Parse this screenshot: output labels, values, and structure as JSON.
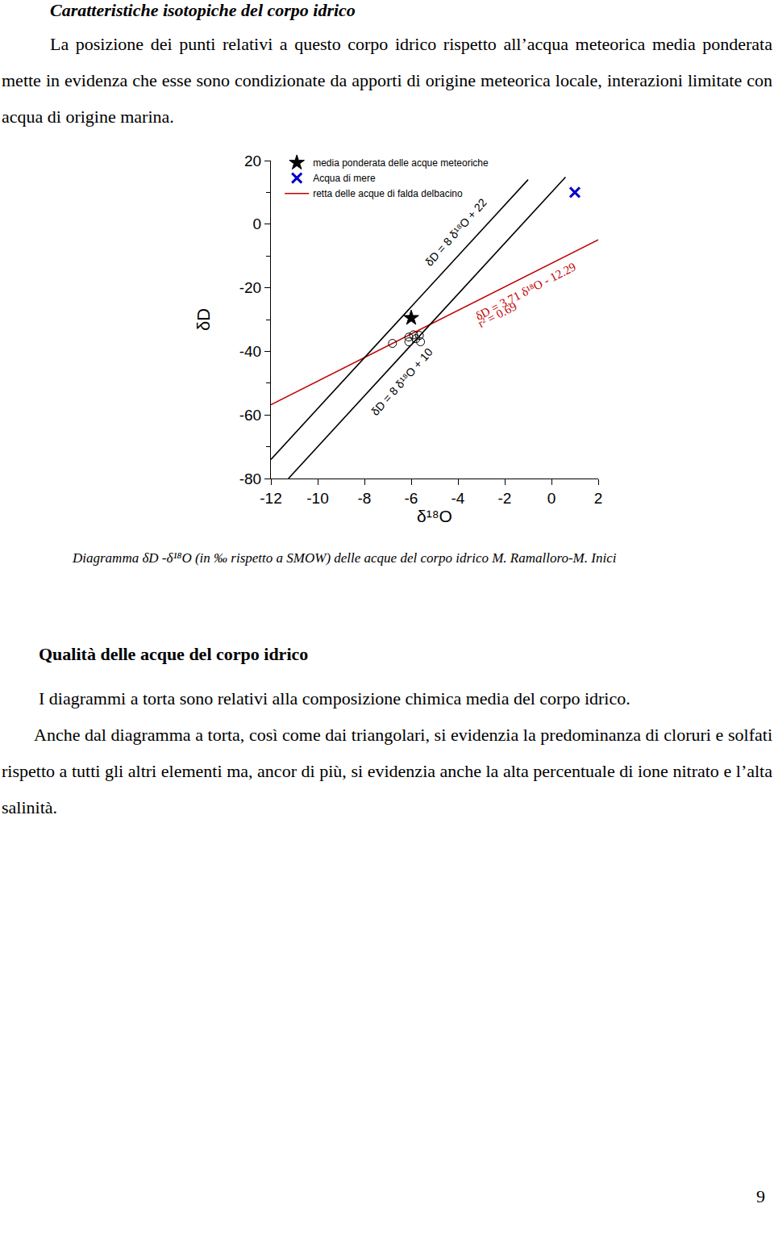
{
  "document": {
    "heading": "Caratteristiche isotopiche del corpo idrico",
    "paragraph": "La posizione dei punti relativi a questo corpo idrico rispetto all’acqua meteorica media ponderata mette in evidenza che esse sono condizionate da apporti di origine meteorica locale, interazioni limitate con acqua di origine marina.",
    "caption": "Diagramma δD -δ¹⁸O (in ‰ rispetto a SMOW) delle acque del corpo idrico M. Ramalloro-M. Inici",
    "section": {
      "heading": "Qualità delle acque del corpo idrico",
      "paragraphs": [
        "I diagrammi a torta sono relativi alla composizione chimica media del corpo idrico.",
        "Anche dal diagramma a torta, così come dai triangolari, si evidenzia la predominanza di cloruri e solfati rispetto a tutti gli altri elementi ma, ancor di più, si evidenzia anche la alta percentuale di ione nitrato e l’alta salinità."
      ]
    },
    "page_number": 9
  },
  "chart_data": {
    "type": "scatter",
    "x_label": "δ¹⁸O",
    "y_label": "δD",
    "xlim": [
      -12,
      2
    ],
    "ylim": [
      -80,
      20
    ],
    "xticks": [
      -12,
      -10,
      -8,
      -6,
      -4,
      -2,
      0,
      2
    ],
    "yticks": [
      -80,
      -60,
      -40,
      -20,
      0,
      20
    ],
    "grid": false,
    "legend": "upper left",
    "series": [
      {
        "name": "media ponderata delle acque meteoriche",
        "type": "scatter",
        "marker": "star",
        "color": "#000000",
        "x": [
          -6.0
        ],
        "y": [
          -29.5
        ]
      },
      {
        "name": "Acqua di mere",
        "type": "scatter",
        "marker": "x",
        "color": "#0000cc",
        "x": [
          1.0
        ],
        "y": [
          10.0
        ]
      },
      {
        "name": "retta delle acque di falda delbacino",
        "type": "line",
        "color": "#c00000",
        "x": [
          -12,
          2
        ],
        "y": [
          -56.8,
          -4.9
        ],
        "annotations": [
          {
            "text": "δD = 3.71 δ¹⁸O - 12.29",
            "x": -1.1,
            "y": -21.0
          },
          {
            "text": "r² = 0.69",
            "x": -2.3,
            "y": -28.5
          }
        ]
      },
      {
        "type": "line",
        "color": "#000000",
        "x": [
          -12,
          -1.0
        ],
        "y": [
          -74,
          14
        ],
        "annotations": [
          {
            "text": "δD = 8 δ¹⁸O + 22",
            "x": -4.1,
            "y": -2.5
          }
        ]
      },
      {
        "type": "line",
        "color": "#000000",
        "x": [
          -11.25,
          0.6
        ],
        "y": [
          -80,
          14.8
        ],
        "annotations": [
          {
            "text": "δD = 8 δ¹⁸O + 10",
            "x": -6.4,
            "y": -49.5
          }
        ]
      },
      {
        "type": "scatter",
        "marker": "circle-open",
        "color": "#000000",
        "x": [
          -6.8,
          -6.1,
          -6.1,
          -5.9,
          -5.8,
          -5.65,
          -5.6
        ],
        "y": [
          -37.5,
          -35.5,
          -37.0,
          -34.8,
          -36.0,
          -35.0,
          -37.0
        ]
      }
    ]
  }
}
